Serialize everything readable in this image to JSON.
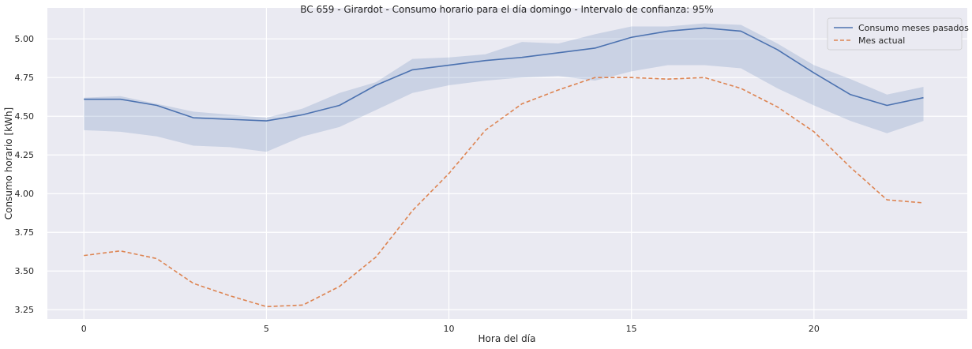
{
  "chart_data": {
    "type": "line",
    "title": "BC 659 - Girardot - Consumo horario para el día domingo - Intervalo de confianza: 95%",
    "xlabel": "Hora del día",
    "ylabel": "Consumo horario [kWh]",
    "xlim": [
      -1,
      24.2
    ],
    "ylim": [
      3.19,
      5.2
    ],
    "xticks": [
      0,
      5,
      10,
      15,
      20
    ],
    "yticks": [
      3.25,
      3.5,
      3.75,
      4.0,
      4.25,
      4.5,
      4.75,
      5.0
    ],
    "ytick_labels": [
      "3.25",
      "3.50",
      "3.75",
      "4.00",
      "4.25",
      "4.50",
      "4.75",
      "5.00"
    ],
    "grid": true,
    "legend_position": "top-right",
    "x": [
      0,
      1,
      2,
      3,
      4,
      5,
      6,
      7,
      8,
      9,
      10,
      11,
      12,
      13,
      14,
      15,
      16,
      17,
      18,
      19,
      20,
      21,
      22,
      23
    ],
    "series": [
      {
        "name": "Consumo meses pasados",
        "style": "solid",
        "color": "#4c72b0",
        "values": [
          4.61,
          4.61,
          4.57,
          4.49,
          4.48,
          4.47,
          4.51,
          4.57,
          4.7,
          4.8,
          4.83,
          4.86,
          4.88,
          4.91,
          4.94,
          5.01,
          5.05,
          5.07,
          5.05,
          4.93,
          4.78,
          4.64,
          4.57,
          4.62
        ],
        "ci_lower": [
          4.41,
          4.4,
          4.37,
          4.31,
          4.3,
          4.27,
          4.37,
          4.43,
          4.54,
          4.65,
          4.7,
          4.73,
          4.75,
          4.76,
          4.73,
          4.79,
          4.83,
          4.83,
          4.81,
          4.68,
          4.57,
          4.47,
          4.39,
          4.47
        ],
        "ci_upper": [
          4.62,
          4.63,
          4.58,
          4.53,
          4.51,
          4.49,
          4.55,
          4.65,
          4.72,
          4.87,
          4.88,
          4.9,
          4.98,
          4.97,
          5.03,
          5.08,
          5.08,
          5.1,
          5.09,
          4.97,
          4.83,
          4.74,
          4.64,
          4.69
        ]
      },
      {
        "name": "Mes actual",
        "style": "dashed",
        "color": "#dd8452",
        "values": [
          3.6,
          3.63,
          3.58,
          3.42,
          3.34,
          3.27,
          3.28,
          3.4,
          3.59,
          3.89,
          4.13,
          4.41,
          4.58,
          4.67,
          4.75,
          4.75,
          4.74,
          4.75,
          4.68,
          4.56,
          4.4,
          4.17,
          3.96,
          3.94
        ]
      }
    ]
  }
}
